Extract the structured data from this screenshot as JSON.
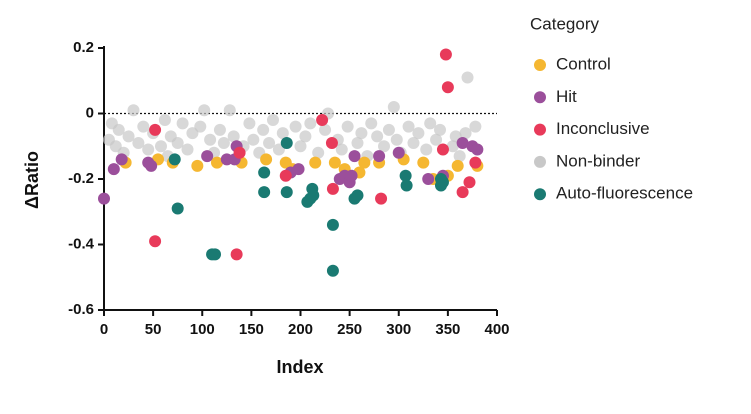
{
  "chart_data": {
    "type": "scatter",
    "xlabel": "Index",
    "ylabel": "ΔRatio",
    "legend_title": "Category",
    "legend": "right",
    "xlim": [
      0,
      400
    ],
    "xticks": [
      0,
      50,
      100,
      150,
      200,
      250,
      300,
      350,
      400
    ],
    "ylim": [
      -0.6,
      0.2
    ],
    "yticks": [
      0.2,
      0,
      -0.2,
      -0.4,
      -0.6
    ],
    "series": [
      {
        "name": "Control",
        "color": "#f5b731",
        "x": [
          22,
          55,
          70,
          95,
          115,
          140,
          165,
          185,
          192,
          215,
          235,
          245,
          260,
          265,
          280,
          305,
          325,
          335,
          350,
          360,
          380
        ],
        "values": [
          -0.15,
          -0.14,
          -0.15,
          -0.16,
          -0.15,
          -0.15,
          -0.14,
          -0.15,
          -0.17,
          -0.15,
          -0.15,
          -0.17,
          -0.18,
          -0.15,
          -0.15,
          -0.14,
          -0.15,
          -0.2,
          -0.19,
          -0.16,
          -0.16
        ]
      },
      {
        "name": "Hit",
        "color": "#9b4f9b",
        "x": [
          0,
          10,
          18,
          45,
          48,
          105,
          125,
          133,
          135,
          190,
          198,
          240,
          245,
          250,
          252,
          255,
          280,
          300,
          330,
          345,
          365,
          375,
          380
        ],
        "values": [
          -0.26,
          -0.17,
          -0.14,
          -0.15,
          -0.16,
          -0.13,
          -0.14,
          -0.14,
          -0.1,
          -0.18,
          -0.17,
          -0.2,
          -0.19,
          -0.21,
          -0.19,
          -0.13,
          -0.13,
          -0.12,
          -0.2,
          -0.19,
          -0.09,
          -0.1,
          -0.11
        ]
      },
      {
        "name": "Inconclusive",
        "color": "#e83a5a",
        "x": [
          52,
          52,
          135,
          138,
          185,
          222,
          232,
          233,
          282,
          348,
          350,
          345,
          365,
          372,
          378
        ],
        "values": [
          -0.05,
          -0.39,
          -0.43,
          -0.12,
          -0.19,
          -0.02,
          -0.09,
          -0.23,
          -0.26,
          0.18,
          0.08,
          -0.11,
          -0.24,
          -0.21,
          -0.15
        ]
      },
      {
        "name": "Non-binder",
        "color": "#c8c8c8",
        "x": [
          5,
          8,
          12,
          15,
          20,
          25,
          30,
          35,
          40,
          45,
          50,
          58,
          62,
          65,
          68,
          75,
          80,
          85,
          90,
          98,
          102,
          108,
          112,
          118,
          122,
          128,
          132,
          142,
          148,
          152,
          158,
          162,
          168,
          172,
          178,
          182,
          195,
          200,
          205,
          210,
          218,
          225,
          228,
          238,
          242,
          248,
          258,
          262,
          268,
          272,
          278,
          285,
          290,
          295,
          298,
          302,
          310,
          315,
          320,
          328,
          332,
          338,
          342,
          355,
          358,
          362,
          368,
          370,
          378
        ],
        "values": [
          -0.08,
          -0.03,
          -0.1,
          -0.05,
          -0.12,
          -0.07,
          0.01,
          -0.09,
          -0.04,
          -0.11,
          -0.06,
          -0.1,
          -0.02,
          -0.13,
          -0.07,
          -0.09,
          -0.03,
          -0.11,
          -0.06,
          -0.04,
          0.01,
          -0.08,
          -0.12,
          -0.05,
          -0.09,
          0.01,
          -0.07,
          -0.1,
          -0.03,
          -0.08,
          -0.12,
          -0.05,
          -0.09,
          -0.02,
          -0.11,
          -0.06,
          -0.04,
          -0.1,
          -0.07,
          -0.03,
          -0.12,
          -0.05,
          0.0,
          -0.08,
          -0.11,
          -0.04,
          -0.09,
          -0.06,
          -0.13,
          -0.03,
          -0.07,
          -0.1,
          -0.05,
          0.02,
          -0.08,
          -0.12,
          -0.04,
          -0.09,
          -0.06,
          -0.11,
          -0.03,
          -0.08,
          -0.05,
          -0.1,
          -0.07,
          -0.13,
          -0.06,
          0.11,
          -0.04
        ]
      },
      {
        "name": "Auto-fluorescence",
        "color": "#1a7a72",
        "x": [
          72,
          75,
          110,
          113,
          163,
          163,
          186,
          186,
          207,
          210,
          212,
          213,
          233,
          233,
          255,
          258,
          307,
          308,
          343,
          343,
          345
        ],
        "values": [
          -0.14,
          -0.29,
          -0.43,
          -0.43,
          -0.18,
          -0.24,
          -0.09,
          -0.24,
          -0.27,
          -0.26,
          -0.23,
          -0.25,
          -0.34,
          -0.48,
          -0.26,
          -0.25,
          -0.19,
          -0.22,
          -0.2,
          -0.22,
          -0.21
        ]
      }
    ]
  }
}
